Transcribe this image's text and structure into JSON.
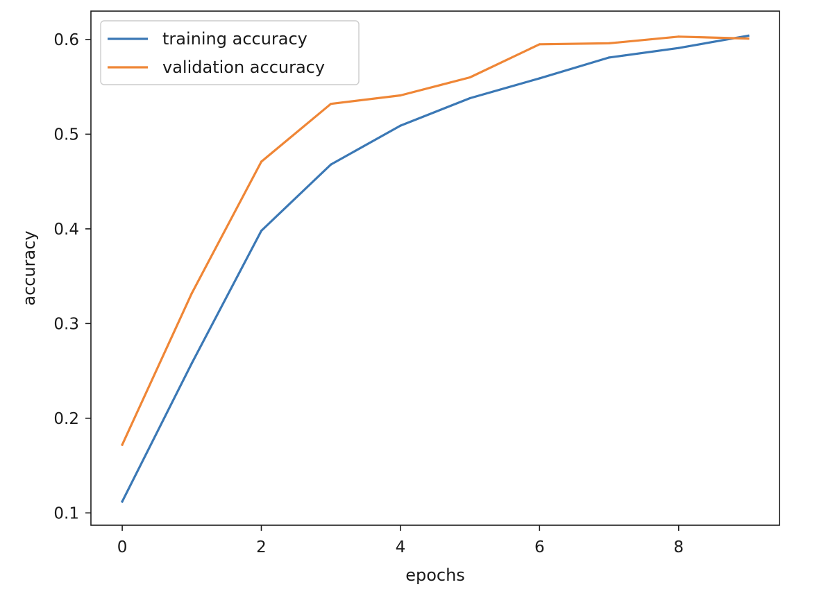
{
  "chart_data": {
    "type": "line",
    "xlabel": "epochs",
    "ylabel": "accuracy",
    "x": [
      0,
      1,
      2,
      3,
      4,
      5,
      6,
      7,
      8,
      9
    ],
    "xlim": [
      -0.45,
      9.45
    ],
    "ylim": [
      0.087,
      0.63
    ],
    "xticks": [
      0,
      2,
      4,
      6,
      8
    ],
    "yticks": [
      0.1,
      0.2,
      0.3,
      0.4,
      0.5,
      0.6
    ],
    "grid": false,
    "legend_position": "top-left",
    "series": [
      {
        "name": "training accuracy",
        "color": "#3b78b5",
        "values": [
          0.112,
          0.258,
          0.398,
          0.468,
          0.509,
          0.538,
          0.559,
          0.581,
          0.591,
          0.604
        ]
      },
      {
        "name": "validation accuracy",
        "color": "#ef8636",
        "values": [
          0.172,
          0.332,
          0.471,
          0.532,
          0.541,
          0.56,
          0.595,
          0.596,
          0.603,
          0.601
        ]
      }
    ]
  }
}
